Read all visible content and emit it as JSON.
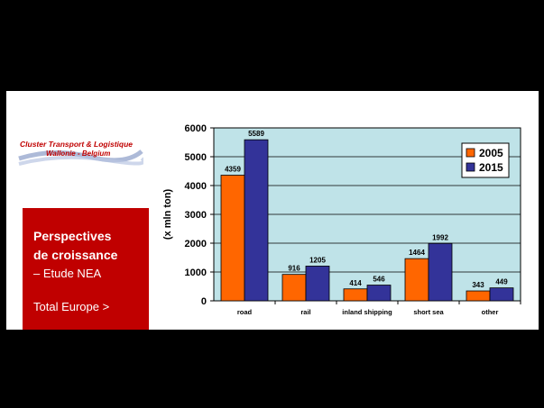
{
  "logo": {
    "line1": "Cluster Transport & Logistique",
    "line2": "Wallonie - Belgium"
  },
  "panel": {
    "heading1": "Perspectives",
    "heading2": "de croissance",
    "subtitle": "– Etude NEA",
    "link": "Total Europe >"
  },
  "chart_data": {
    "type": "bar",
    "categories": [
      "road",
      "rail",
      "inland shipping",
      "short sea",
      "other"
    ],
    "series": [
      {
        "name": "2005",
        "values": [
          4359,
          916,
          414,
          1464,
          343
        ],
        "color": "#ff6600"
      },
      {
        "name": "2015",
        "values": [
          5589,
          1205,
          546,
          1992,
          449
        ],
        "color": "#333399"
      }
    ],
    "ylabel": "(x mln ton)",
    "ylim": [
      0,
      6000
    ],
    "yticks": [
      0,
      1000,
      2000,
      3000,
      4000,
      5000,
      6000
    ],
    "grid": true,
    "plot_background": "#bfe3e8",
    "legend": "top-right"
  }
}
